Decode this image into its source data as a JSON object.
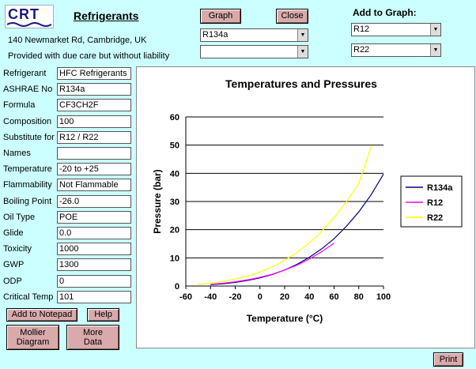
{
  "header": {
    "logo_text": "CRT",
    "title": "Refrigerants",
    "address": "140 Newmarket Rd, Cambridge, UK",
    "liability": "Provided with due care but without liability"
  },
  "toolbar": {
    "graph_label": "Graph",
    "close_label": "Close",
    "add_to_graph_label": "Add to Graph:",
    "primary_select": "R134a",
    "secondary_select": "",
    "add_select_1": "R12",
    "add_select_2": "R22"
  },
  "fields": [
    {
      "label": "Refrigerant",
      "value": "HFC Refrigerants"
    },
    {
      "label": "ASHRAE No",
      "value": "R134a"
    },
    {
      "label": "Formula",
      "value": "CF3CH2F"
    },
    {
      "label": "Composition",
      "value": "100"
    },
    {
      "label": "Substitute for",
      "value": "R12 / R22"
    },
    {
      "label": "Names",
      "value": ""
    },
    {
      "label": "Temperature",
      "value": "-20 to +25"
    },
    {
      "label": "Flammability",
      "value": "Not Flammable"
    },
    {
      "label": "Boiling Point",
      "value": "-26.0"
    },
    {
      "label": "Oil Type",
      "value": "POE"
    },
    {
      "label": "Glide",
      "value": "0.0"
    },
    {
      "label": "Toxicity",
      "value": "1000"
    },
    {
      "label": "GWP",
      "value": "1300"
    },
    {
      "label": "ODP",
      "value": "0"
    },
    {
      "label": "Critical Temp",
      "value": "101"
    }
  ],
  "buttons": {
    "add_to_notepad": "Add to Notepad",
    "help": "Help",
    "mollier": "Mollier Diagram",
    "more_data": "More Data",
    "print": "Print"
  },
  "colors": {
    "background": "#ccffff",
    "button": "#d9aaaa",
    "r134a": "#000080",
    "r12": "#ff00ff",
    "r22": "#ffff00"
  },
  "chart_data": {
    "type": "line",
    "title": "Temperatures and Pressures",
    "xlabel": "Temperature (°C)",
    "ylabel": "Pressure (bar)",
    "xlim": [
      -60,
      100
    ],
    "ylim": [
      0,
      60
    ],
    "xticks": [
      -60,
      -40,
      -20,
      0,
      20,
      40,
      60,
      80,
      100
    ],
    "yticks": [
      0,
      10,
      20,
      30,
      40,
      50,
      60
    ],
    "grid": "horizontal",
    "legend": "right",
    "series": [
      {
        "name": "R134a",
        "color": "#000080",
        "x": [
          -40,
          -30,
          -20,
          -10,
          0,
          10,
          20,
          30,
          40,
          50,
          60,
          70,
          80,
          90,
          100
        ],
        "y": [
          0.5,
          0.8,
          1.3,
          2.0,
          2.9,
          4.1,
          5.7,
          7.7,
          10.2,
          13.2,
          16.8,
          21.2,
          26.3,
          32.4,
          39.7
        ]
      },
      {
        "name": "R12",
        "color": "#ff00ff",
        "x": [
          -40,
          -30,
          -20,
          -10,
          0,
          10,
          20,
          30,
          40,
          50,
          60
        ],
        "y": [
          0.6,
          1.0,
          1.5,
          2.2,
          3.1,
          4.2,
          5.7,
          7.4,
          9.6,
          12.2,
          15.2
        ]
      },
      {
        "name": "R22",
        "color": "#ffff00",
        "x": [
          -50,
          -40,
          -30,
          -20,
          -10,
          0,
          10,
          20,
          30,
          40,
          50,
          60,
          70,
          80,
          90
        ],
        "y": [
          0.6,
          1.0,
          1.6,
          2.5,
          3.5,
          5.0,
          6.8,
          9.1,
          11.9,
          15.3,
          19.4,
          24.3,
          29.9,
          36.4,
          49.5
        ]
      }
    ]
  }
}
